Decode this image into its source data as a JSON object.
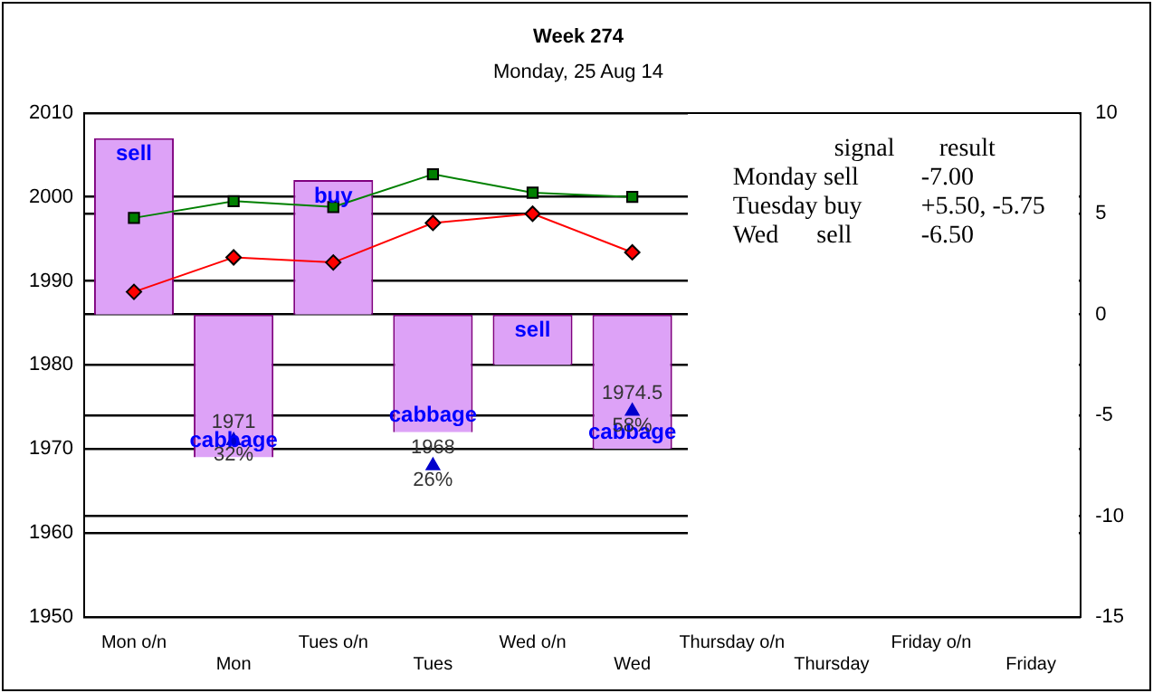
{
  "chart_data": {
    "type": "bar",
    "title": "Week 274",
    "subtitle": "Monday, 25 Aug 14",
    "categories": [
      "Mon o/n",
      "Mon",
      "Tues o/n",
      "Tues",
      "Wed o/n",
      "Wed",
      "Thursday o/n",
      "Thursday",
      "Friday o/n",
      "Friday"
    ],
    "series": [
      {
        "color": "#dda2f7",
        "value_labels": [
          "sell",
          "cabbage",
          "buy",
          "cabbage",
          "sell",
          "cabbage",
          null,
          null,
          null,
          null
        ],
        "base": [
          1986,
          1969,
          1986,
          1972,
          1980,
          1970,
          null,
          null,
          null,
          null
        ],
        "values": [
          21,
          17,
          16,
          14,
          6,
          16,
          null,
          null,
          null,
          null
        ]
      },
      {
        "type": "line",
        "color": "#008000",
        "marker": "square",
        "values": [
          1997.5,
          1999.5,
          1998.8,
          2002.7,
          2000.5,
          2000,
          null,
          null,
          null,
          null
        ]
      },
      {
        "type": "line",
        "color": "#ff0000",
        "marker": "diamond",
        "values": [
          1988.7,
          1992.8,
          1992.2,
          1996.9,
          1998,
          1993.4,
          null,
          null,
          null,
          null
        ]
      },
      {
        "type": "scatter",
        "color": "#0000cc",
        "marker": "triangle",
        "values": [
          null,
          1971,
          null,
          1968,
          null,
          1974.5,
          null,
          null,
          null,
          null
        ],
        "value_labels": [
          null,
          "1971\n32%",
          null,
          "1968\n26%",
          null,
          "1974.5\n58%",
          null,
          null,
          null,
          null
        ]
      }
    ],
    "ylim": [
      1950,
      2010
    ],
    "yticks": [
      1950,
      1960,
      {
        "value": 1962,
        "label": null
      },
      1970,
      {
        "value": 1974,
        "label": null
      },
      1980,
      {
        "value": 1986,
        "label": null
      },
      1990,
      {
        "value": 1998,
        "label": null
      },
      2000,
      2010
    ],
    "y2lim": [
      -15,
      10
    ],
    "y2ticks": [
      -15,
      -10,
      -5,
      0,
      5,
      10
    ],
    "grid": "y",
    "legend": false,
    "annotations": [
      "signal",
      "result",
      "Monday sell",
      "-7.00",
      "Tuesday buy",
      "+5.50, -5.75",
      "Wed      sell",
      "-6.50"
    ]
  }
}
